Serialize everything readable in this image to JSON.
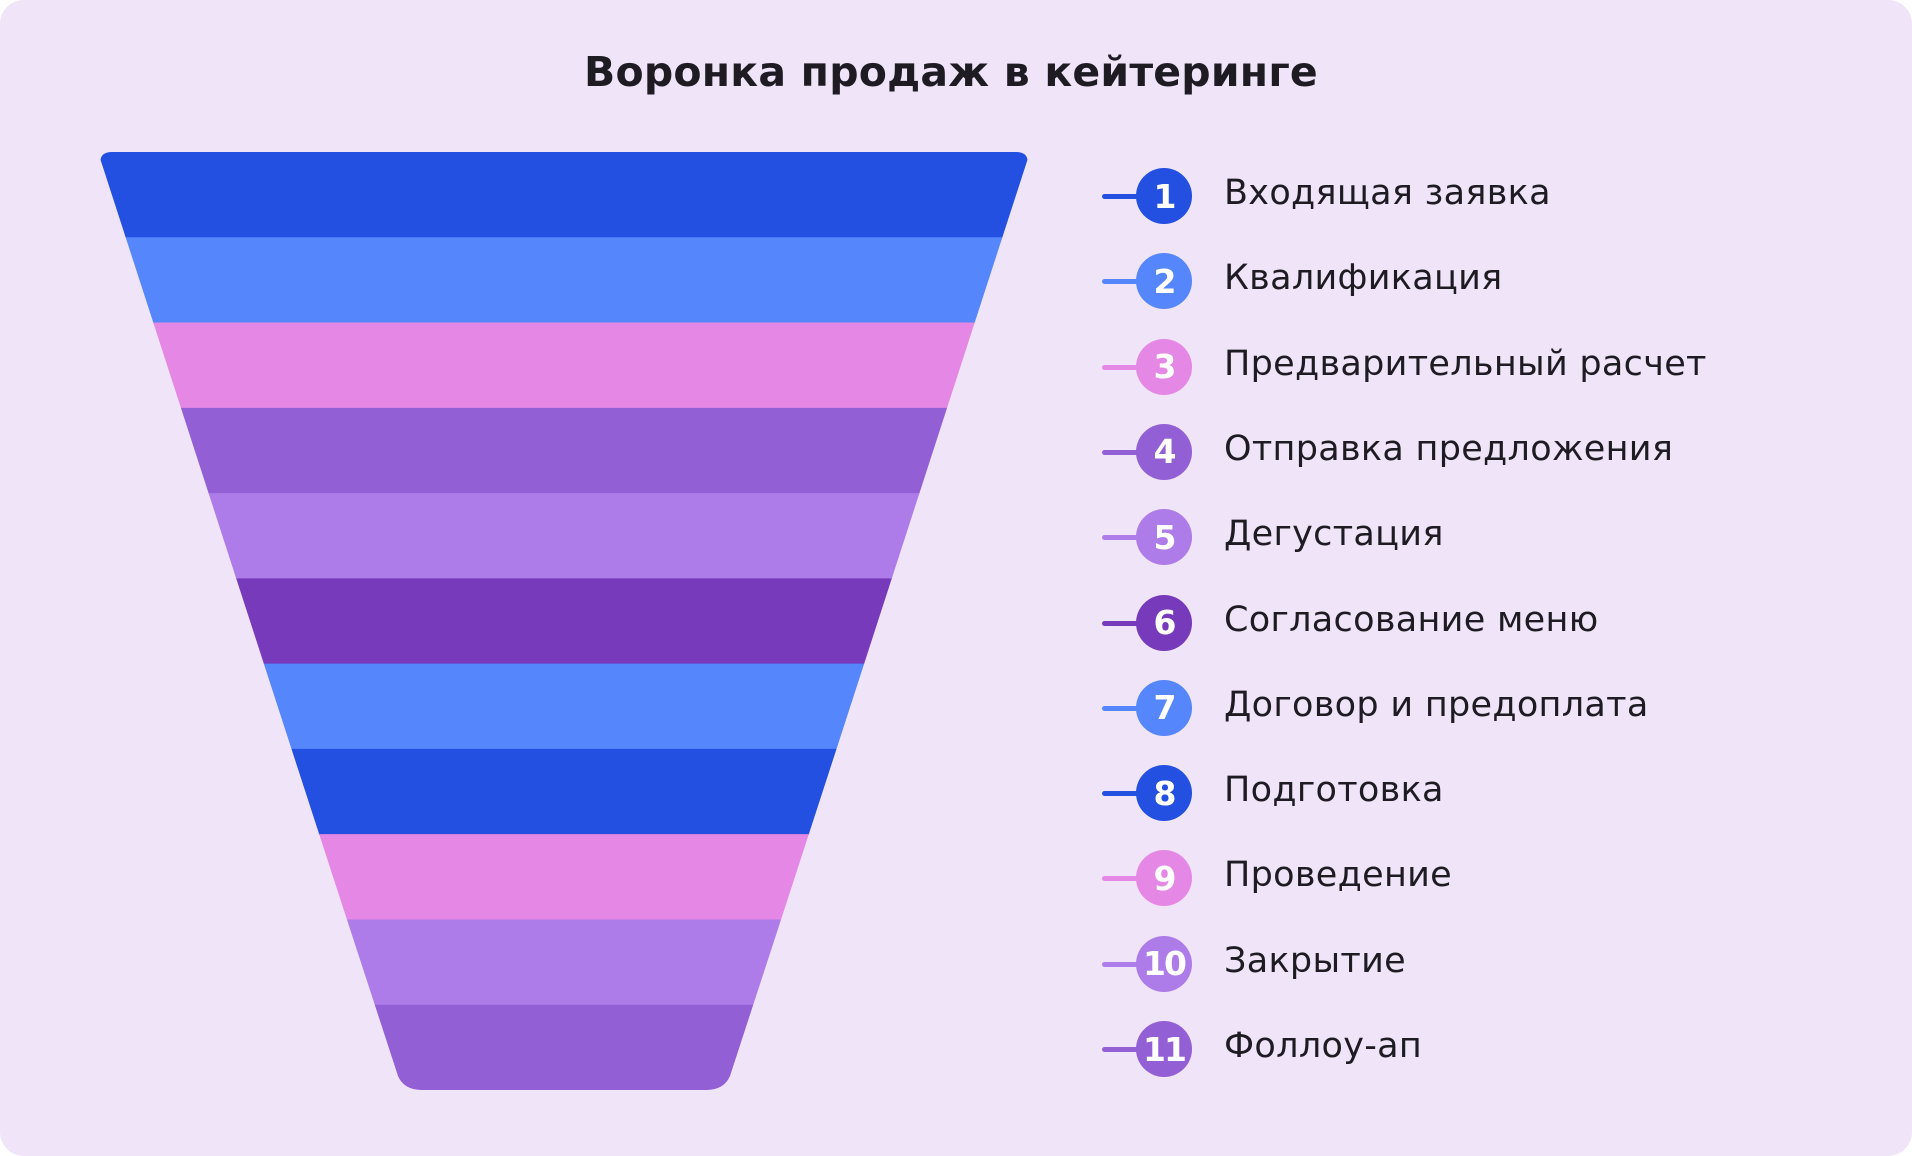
{
  "title": "Воронка продаж в кейтеринге",
  "stages": [
    {
      "number": "1",
      "label": "Входящая заявка",
      "color": "#2350e0"
    },
    {
      "number": "2",
      "label": "Квалификация",
      "color": "#5586fc"
    },
    {
      "number": "3",
      "label": "Предварительный расчет",
      "color": "#e487e5"
    },
    {
      "number": "4",
      "label": "Отправка предложения",
      "color": "#935fd5"
    },
    {
      "number": "5",
      "label": "Дегустация",
      "color": "#ad7ce8"
    },
    {
      "number": "6",
      "label": "Согласование меню",
      "color": "#773abb"
    },
    {
      "number": "7",
      "label": "Договор и предоплата",
      "color": "#5586fc"
    },
    {
      "number": "8",
      "label": "Подготовка",
      "color": "#2350e0"
    },
    {
      "number": "9",
      "label": "Проведение",
      "color": "#e487e5"
    },
    {
      "number": "10",
      "label": "Закрытие",
      "color": "#ad7ce8"
    },
    {
      "number": "11",
      "label": "Фоллоу-ап",
      "color": "#935fd5"
    }
  ]
}
